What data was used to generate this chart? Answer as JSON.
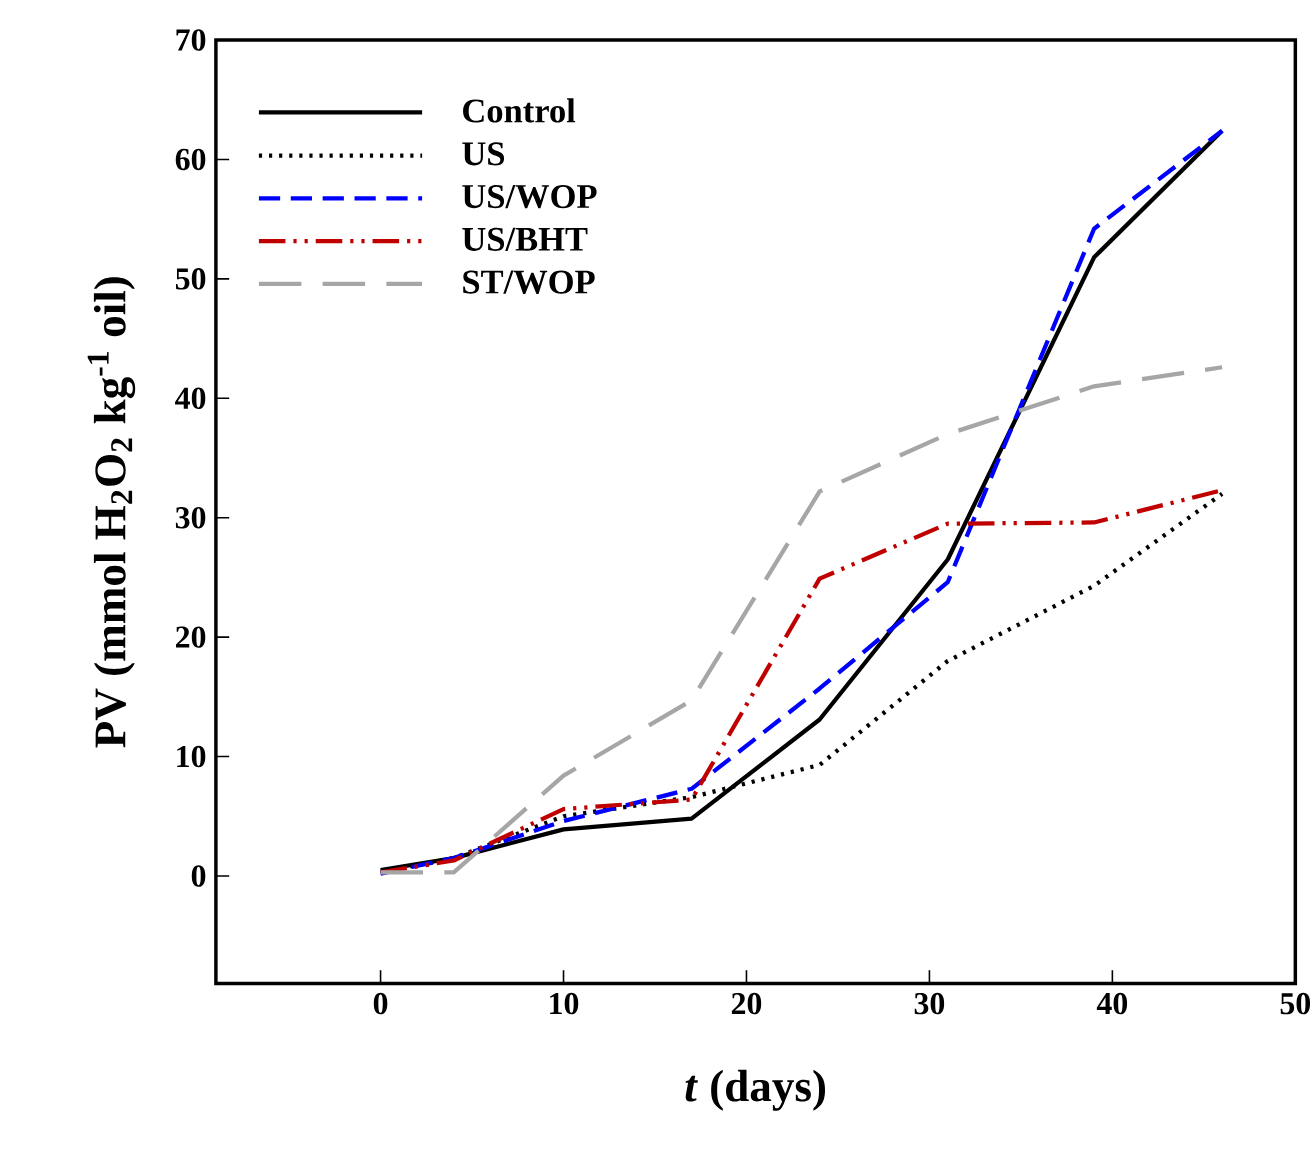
{
  "chart_data": {
    "type": "line",
    "xlabel": "*t* (days)",
    "ylabel": "PV (mmol H$_{2}$O$_{2}$ kg$^{-1}$ oil)",
    "x": [
      0,
      4,
      10,
      17,
      24,
      31,
      39,
      46
    ],
    "xlim": [
      -9,
      50
    ],
    "ylim": [
      -9,
      70
    ],
    "xticks": [
      0,
      10,
      20,
      30,
      40,
      50
    ],
    "yticks": [
      0,
      10,
      20,
      30,
      40,
      50,
      60,
      70
    ],
    "grid": false,
    "legend": "top left",
    "series": [
      {
        "name": "Control",
        "color": "#000000",
        "line_style": "solid",
        "values": [
          0.5,
          1.5,
          3.9,
          4.8,
          13.1,
          26.5,
          51.8,
          62.4
        ]
      },
      {
        "name": "US",
        "color": "#000000",
        "line_style": "dotted",
        "values": [
          0.3,
          1.5,
          5.0,
          6.6,
          9.3,
          18.0,
          24.3,
          32.0
        ]
      },
      {
        "name": "US/WOP",
        "color": "#0000ff",
        "line_style": "dashed",
        "values": [
          0.2,
          1.5,
          4.6,
          7.3,
          15.7,
          24.6,
          54.2,
          62.4
        ]
      },
      {
        "name": "US/BHT",
        "color": "#c00000",
        "line_style": "dashdotdot",
        "values": [
          0.3,
          1.3,
          5.6,
          6.4,
          24.9,
          29.5,
          29.6,
          32.3
        ]
      },
      {
        "name": "ST/WOP",
        "color": "#a6a6a6",
        "line_style": "longdashed",
        "values": [
          0.3,
          0.3,
          8.4,
          14.7,
          32.2,
          37.0,
          41.0,
          42.6
        ]
      }
    ]
  }
}
